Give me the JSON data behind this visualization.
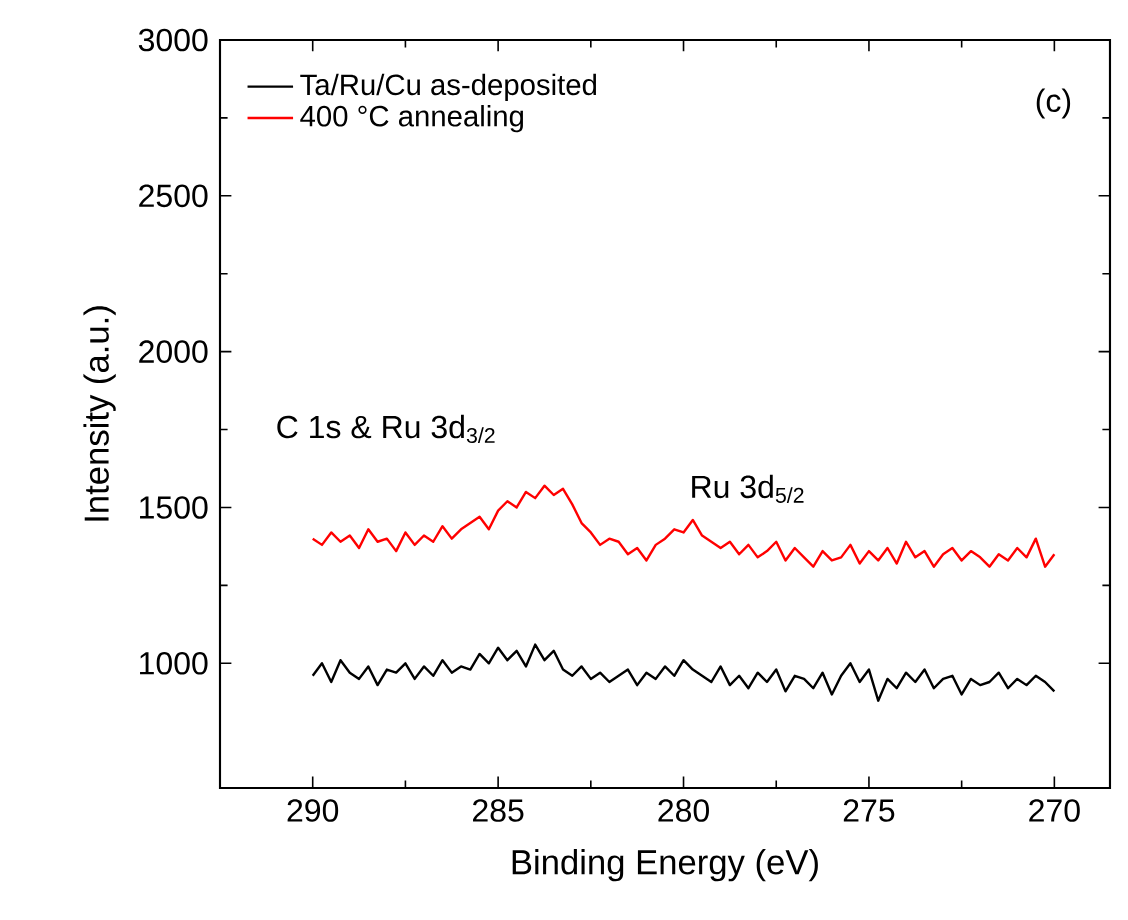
{
  "chart_data": {
    "type": "line",
    "xlabel": "Binding Energy (eV)",
    "ylabel": "Intensity (a.u.)",
    "x": [
      290,
      289.75,
      289.5,
      289.25,
      289,
      288.75,
      288.5,
      288.25,
      288,
      287.75,
      287.5,
      287.25,
      287,
      286.75,
      286.5,
      286.25,
      286,
      285.75,
      285.5,
      285.25,
      285,
      284.75,
      284.5,
      284.25,
      284,
      283.75,
      283.5,
      283.25,
      283,
      282.75,
      282.5,
      282.25,
      282,
      281.75,
      281.5,
      281.25,
      281,
      280.75,
      280.5,
      280.25,
      280,
      279.75,
      279.5,
      279.25,
      279,
      278.75,
      278.5,
      278.25,
      278,
      277.75,
      277.5,
      277.25,
      277,
      276.75,
      276.5,
      276.25,
      276,
      275.75,
      275.5,
      275.25,
      275,
      274.75,
      274.5,
      274.25,
      274,
      273.75,
      273.5,
      273.25,
      273,
      272.75,
      272.5,
      272.25,
      272,
      271.75,
      271.5,
      271.25,
      271,
      270.75,
      270.5,
      270.25,
      270
    ],
    "series": [
      {
        "name": "Ta/Ru/Cu as-deposited",
        "color": "#000000",
        "values": [
          960,
          1000,
          940,
          1010,
          970,
          950,
          990,
          930,
          980,
          970,
          1000,
          950,
          990,
          960,
          1010,
          970,
          990,
          980,
          1030,
          1000,
          1050,
          1010,
          1040,
          990,
          1060,
          1010,
          1040,
          980,
          960,
          990,
          950,
          970,
          940,
          960,
          980,
          930,
          970,
          950,
          990,
          960,
          1010,
          980,
          960,
          940,
          990,
          930,
          960,
          920,
          970,
          940,
          980,
          910,
          960,
          950,
          920,
          970,
          900,
          960,
          1000,
          940,
          980,
          880,
          950,
          920,
          970,
          940,
          980,
          920,
          950,
          960,
          900,
          950,
          930,
          940,
          970,
          920,
          950,
          930,
          960,
          940,
          910
        ]
      },
      {
        "name": "400 °C annealing",
        "color": "#ff0000",
        "values": [
          1400,
          1380,
          1420,
          1390,
          1410,
          1370,
          1430,
          1390,
          1400,
          1360,
          1420,
          1380,
          1410,
          1390,
          1440,
          1400,
          1430,
          1450,
          1470,
          1430,
          1490,
          1520,
          1500,
          1550,
          1530,
          1570,
          1540,
          1560,
          1510,
          1450,
          1420,
          1380,
          1400,
          1390,
          1350,
          1370,
          1330,
          1380,
          1400,
          1430,
          1420,
          1460,
          1410,
          1390,
          1370,
          1390,
          1350,
          1380,
          1340,
          1360,
          1390,
          1330,
          1370,
          1340,
          1310,
          1360,
          1330,
          1340,
          1380,
          1320,
          1360,
          1330,
          1370,
          1320,
          1390,
          1340,
          1360,
          1310,
          1350,
          1370,
          1330,
          1360,
          1340,
          1310,
          1350,
          1330,
          1370,
          1340,
          1400,
          1310,
          1350
        ]
      }
    ],
    "xlim": [
      292.5,
      268.5
    ],
    "ylim": [
      600,
      3000
    ],
    "xticks": [
      290,
      285,
      280,
      275,
      270
    ],
    "yticks": [
      1000,
      1500,
      2000,
      2500,
      3000
    ],
    "legend": "top left",
    "grid": false,
    "marker": "none",
    "line_style": "solid",
    "annotations": [
      "C 1s & Ru 3d$_{3/2}$",
      "Ru 3d$_{5/2}$",
      "(c)"
    ]
  }
}
